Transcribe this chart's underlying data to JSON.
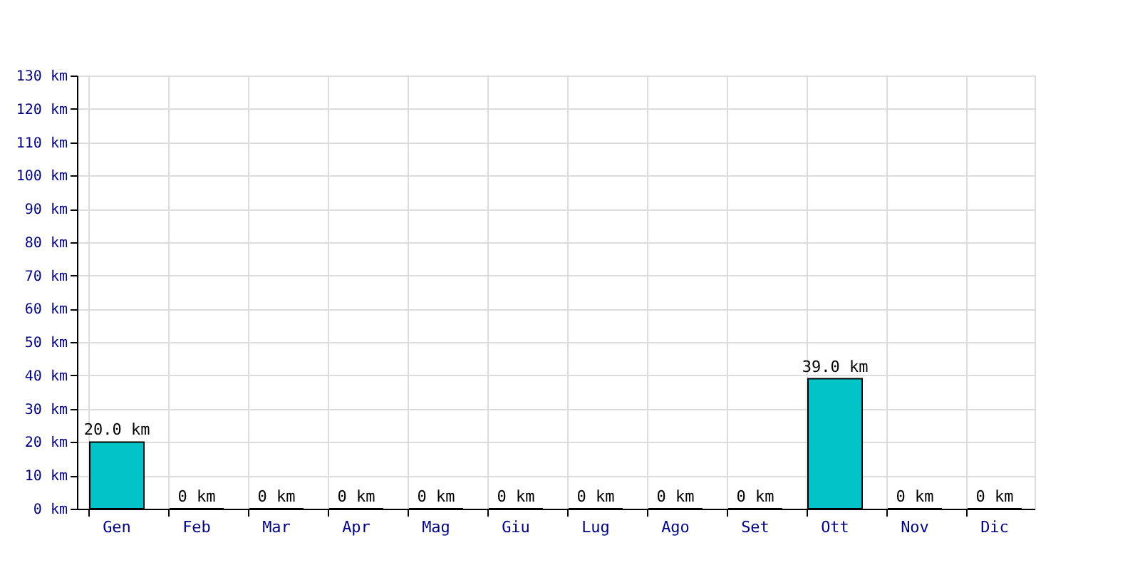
{
  "chart_data": {
    "type": "bar",
    "categories": [
      "Gen",
      "Feb",
      "Mar",
      "Apr",
      "Mag",
      "Giu",
      "Lug",
      "Ago",
      "Set",
      "Ott",
      "Nov",
      "Dic"
    ],
    "values": [
      20,
      0,
      0,
      0,
      0,
      0,
      0,
      0,
      0,
      39,
      0,
      0
    ],
    "value_labels": [
      "20.0 km",
      "0 km",
      "0 km",
      "0 km",
      "0 km",
      "0 km",
      "0 km",
      "0 km",
      "0 km",
      "39.0 km",
      "0 km",
      "0 km"
    ],
    "color": "#00c4c8",
    "ylim": [
      0,
      130
    ],
    "yticks": [
      {
        "value": 0,
        "label": "0 km"
      },
      {
        "value": 10,
        "label": "10 km"
      },
      {
        "value": 20,
        "label": "20 km"
      },
      {
        "value": 30,
        "label": "30 km"
      },
      {
        "value": 40,
        "label": "40 km"
      },
      {
        "value": 50,
        "label": "50 km"
      },
      {
        "value": 60,
        "label": "60 km"
      },
      {
        "value": 70,
        "label": "70 km"
      },
      {
        "value": 80,
        "label": "80 km"
      },
      {
        "value": 90,
        "label": "90 km"
      },
      {
        "value": 100,
        "label": "100 km"
      },
      {
        "value": 110,
        "label": "110 km"
      },
      {
        "value": 120,
        "label": "120 km"
      },
      {
        "value": 130,
        "label": "130 km"
      }
    ],
    "grid": true
  }
}
